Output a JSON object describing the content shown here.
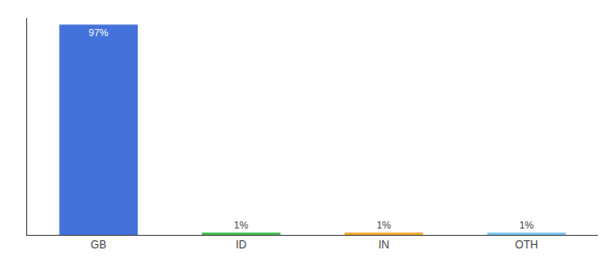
{
  "chart_data": {
    "type": "bar",
    "categories": [
      "GB",
      "ID",
      "IN",
      "OTH"
    ],
    "values": [
      97,
      1,
      1,
      1
    ],
    "value_labels": [
      "97%",
      "1%",
      "1%",
      "1%"
    ],
    "data_labels": true,
    "colors": [
      "#4472db",
      "#3dba4e",
      "#f5a623",
      "#74c6f0"
    ],
    "ylim": [
      0,
      100
    ],
    "grid": false,
    "tick_labels": "x"
  }
}
